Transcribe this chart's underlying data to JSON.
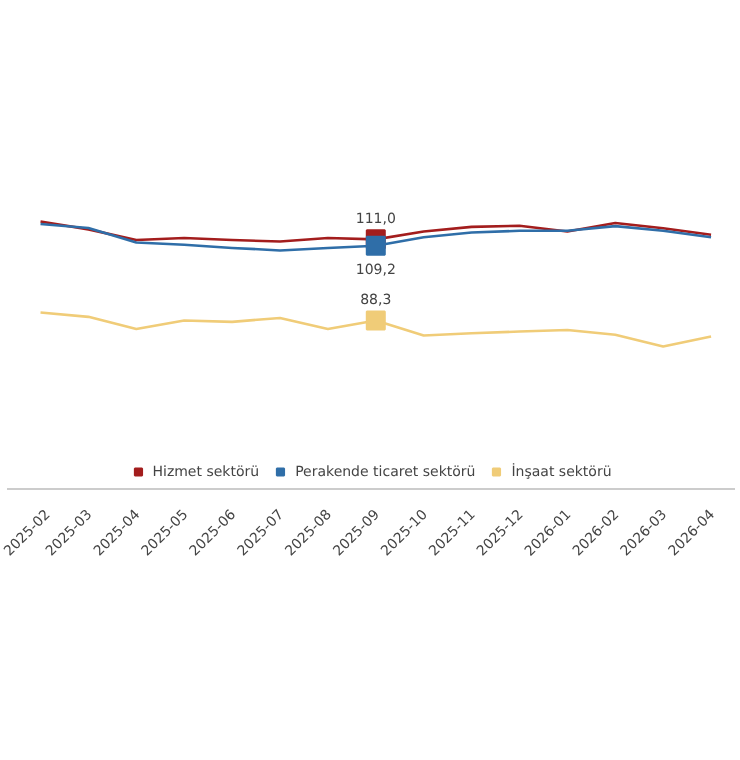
{
  "chart_data": {
    "type": "line",
    "categories": [
      "2025-02",
      "2025-03",
      "2025-04",
      "2025-05",
      "2025-06",
      "2025-07",
      "2025-08",
      "2025-09",
      "2025-10",
      "2025-11",
      "2025-12",
      "2026-01",
      "2026-02",
      "2026-03",
      "2026-04"
    ],
    "series": [
      {
        "name": "Hizmet sektörü",
        "color": "#a31d1d",
        "values": [
          116.0,
          113.8,
          110.8,
          111.4,
          110.8,
          110.4,
          111.4,
          111.0,
          113.2,
          114.5,
          114.8,
          113.2,
          115.6,
          114.1,
          112.3
        ],
        "value_labels": [
          null,
          null,
          null,
          null,
          null,
          null,
          null,
          "111,0",
          null,
          null,
          null,
          null,
          null,
          null,
          null
        ]
      },
      {
        "name": "Perakende ticaret sektörü",
        "color": "#2f6ea8",
        "values": [
          115.3,
          114.2,
          110.1,
          109.5,
          108.6,
          107.9,
          108.6,
          109.2,
          111.6,
          112.9,
          113.4,
          113.4,
          114.7,
          113.4,
          111.6
        ],
        "value_labels": [
          null,
          null,
          null,
          null,
          null,
          null,
          null,
          "109,2",
          null,
          null,
          null,
          null,
          null,
          null,
          null
        ]
      },
      {
        "name": "İnşaat sektörü",
        "color": "#f0cc78",
        "values": [
          90.5,
          89.3,
          85.9,
          88.3,
          87.9,
          89.0,
          85.9,
          88.3,
          84.1,
          84.7,
          85.2,
          85.6,
          84.3,
          81.0,
          83.8
        ],
        "value_labels": [
          null,
          null,
          null,
          null,
          null,
          null,
          null,
          "88,3",
          null,
          null,
          null,
          null,
          null,
          null,
          null
        ]
      }
    ],
    "legend": "bottom"
  }
}
